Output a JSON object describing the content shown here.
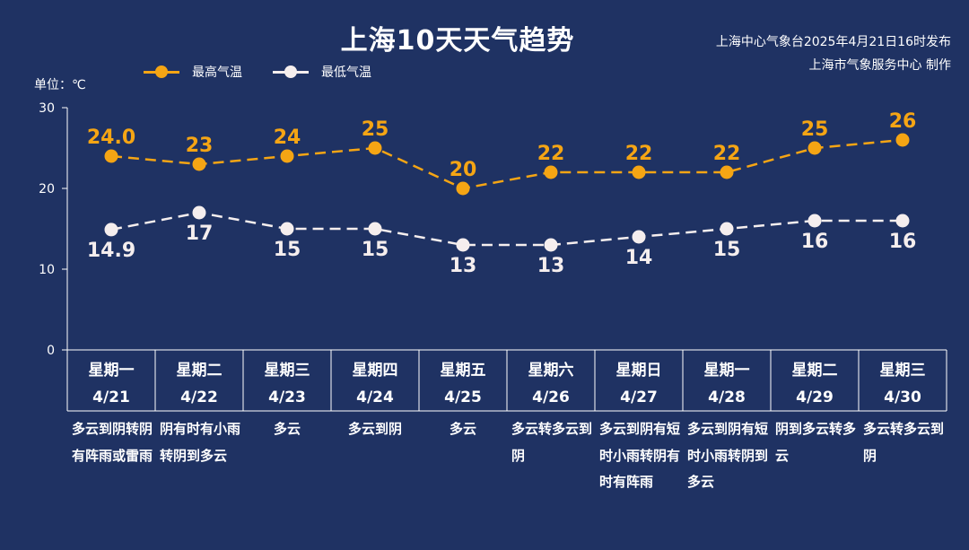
{
  "header": {
    "title": "上海10天天气趋势",
    "source_line1": "上海中心气象台2025年4月21日16时发布",
    "source_line2": "上海市气象服务中心 制作"
  },
  "colors": {
    "background": "#1f3263",
    "high": "#f5a514",
    "low": "#f5eeee",
    "axis": "#ffffff"
  },
  "unit_label": "单位：℃",
  "chart_data": {
    "type": "line",
    "title": "上海10天天气趋势",
    "ylabel": "单位：℃",
    "ylim": [
      0,
      30
    ],
    "yticks": [
      0,
      10,
      20,
      30
    ],
    "legend_position": "top-left",
    "categories": [
      "4/21",
      "4/22",
      "4/23",
      "4/24",
      "4/25",
      "4/26",
      "4/27",
      "4/28",
      "4/29",
      "4/30"
    ],
    "series": [
      {
        "name": "最高气温",
        "color": "#f5a514",
        "values": [
          24.0,
          23,
          24,
          25,
          20,
          22,
          22,
          22,
          25,
          26
        ],
        "labels": [
          "24.0",
          "23",
          "24",
          "25",
          "20",
          "22",
          "22",
          "22",
          "25",
          "26"
        ]
      },
      {
        "name": "最低气温",
        "color": "#f5eeee",
        "values": [
          14.9,
          17,
          15,
          15,
          13,
          13,
          14,
          15,
          16,
          16
        ],
        "labels": [
          "14.9",
          "17",
          "15",
          "15",
          "13",
          "13",
          "14",
          "15",
          "16",
          "16"
        ]
      }
    ]
  },
  "days": [
    {
      "weekday": "星期一",
      "date": "4/21",
      "weather": "多云到阴转阴有阵雨或雷雨"
    },
    {
      "weekday": "星期二",
      "date": "4/22",
      "weather": "阴有时有小雨转阴到多云"
    },
    {
      "weekday": "星期三",
      "date": "4/23",
      "weather": "多云"
    },
    {
      "weekday": "星期四",
      "date": "4/24",
      "weather": "多云到阴"
    },
    {
      "weekday": "星期五",
      "date": "4/25",
      "weather": "多云"
    },
    {
      "weekday": "星期六",
      "date": "4/26",
      "weather": "多云转多云到阴"
    },
    {
      "weekday": "星期日",
      "date": "4/27",
      "weather": "多云到阴有短时小雨转阴有时有阵雨"
    },
    {
      "weekday": "星期一",
      "date": "4/28",
      "weather": "多云到阴有短时小雨转阴到多云"
    },
    {
      "weekday": "星期二",
      "date": "4/29",
      "weather": "阴到多云转多云"
    },
    {
      "weekday": "星期三",
      "date": "4/30",
      "weather": "多云转多云到阴"
    }
  ]
}
